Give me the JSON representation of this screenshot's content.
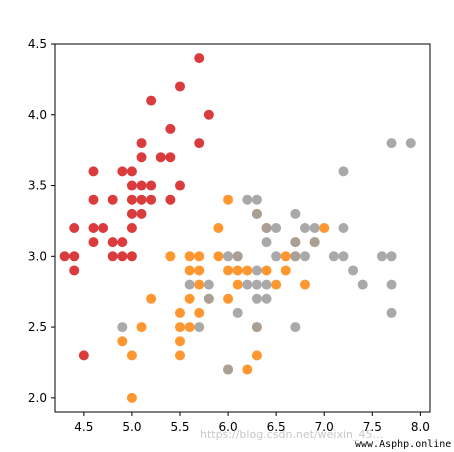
{
  "chart_data": {
    "type": "scatter",
    "title": "",
    "xlabel": "",
    "ylabel": "",
    "xlim": [
      4.2,
      8.1
    ],
    "ylim": [
      1.9,
      4.5
    ],
    "grid": false,
    "xticks": [
      4.5,
      5.0,
      5.5,
      6.0,
      6.5,
      7.0,
      7.5,
      8.0
    ],
    "yticks": [
      2.0,
      2.5,
      3.0,
      3.5,
      4.0,
      4.5
    ],
    "xtick_labels": [
      "4.5",
      "5.0",
      "5.5",
      "6.0",
      "6.5",
      "7.0",
      "7.5",
      "8.0"
    ],
    "ytick_labels": [
      "2.0",
      "2.5",
      "3.0",
      "3.5",
      "4.0",
      "4.5"
    ],
    "series": [
      {
        "color": "#d62728",
        "points": [
          [
            4.3,
            3.0
          ],
          [
            4.4,
            2.9
          ],
          [
            4.4,
            3.0
          ],
          [
            4.4,
            3.2
          ],
          [
            4.5,
            2.3
          ],
          [
            4.6,
            3.1
          ],
          [
            4.6,
            3.2
          ],
          [
            4.6,
            3.4
          ],
          [
            4.6,
            3.6
          ],
          [
            4.7,
            3.2
          ],
          [
            4.8,
            3.0
          ],
          [
            4.8,
            3.1
          ],
          [
            4.8,
            3.4
          ],
          [
            4.9,
            3.0
          ],
          [
            4.9,
            3.1
          ],
          [
            4.9,
            3.6
          ],
          [
            5.0,
            3.0
          ],
          [
            5.0,
            3.2
          ],
          [
            5.0,
            3.3
          ],
          [
            5.0,
            3.4
          ],
          [
            5.0,
            3.5
          ],
          [
            5.0,
            3.6
          ],
          [
            5.1,
            3.3
          ],
          [
            5.1,
            3.4
          ],
          [
            5.1,
            3.5
          ],
          [
            5.1,
            3.7
          ],
          [
            5.1,
            3.8
          ],
          [
            5.2,
            3.4
          ],
          [
            5.2,
            3.5
          ],
          [
            5.2,
            4.1
          ],
          [
            5.3,
            3.7
          ],
          [
            5.4,
            3.4
          ],
          [
            5.4,
            3.7
          ],
          [
            5.4,
            3.9
          ],
          [
            5.5,
            3.5
          ],
          [
            5.5,
            4.2
          ],
          [
            5.7,
            3.8
          ],
          [
            5.7,
            4.4
          ],
          [
            5.8,
            4.0
          ]
        ]
      },
      {
        "color": "#ff8c1a",
        "points": [
          [
            4.9,
            2.4
          ],
          [
            5.0,
            2.0
          ],
          [
            5.0,
            2.3
          ],
          [
            5.1,
            2.5
          ],
          [
            5.2,
            2.7
          ],
          [
            5.4,
            3.0
          ],
          [
            5.5,
            2.3
          ],
          [
            5.5,
            2.4
          ],
          [
            5.5,
            2.5
          ],
          [
            5.5,
            2.6
          ],
          [
            5.6,
            2.5
          ],
          [
            5.6,
            2.7
          ],
          [
            5.6,
            2.9
          ],
          [
            5.6,
            3.0
          ],
          [
            5.7,
            2.6
          ],
          [
            5.7,
            2.8
          ],
          [
            5.7,
            2.9
          ],
          [
            5.7,
            3.0
          ],
          [
            5.8,
            2.7
          ],
          [
            5.9,
            3.0
          ],
          [
            5.9,
            3.2
          ],
          [
            6.0,
            2.2
          ],
          [
            6.0,
            2.7
          ],
          [
            6.0,
            2.9
          ],
          [
            6.0,
            3.4
          ],
          [
            6.1,
            2.8
          ],
          [
            6.1,
            2.9
          ],
          [
            6.1,
            3.0
          ],
          [
            6.2,
            2.2
          ],
          [
            6.2,
            2.9
          ],
          [
            6.3,
            2.3
          ],
          [
            6.3,
            2.5
          ],
          [
            6.3,
            3.3
          ],
          [
            6.4,
            2.9
          ],
          [
            6.4,
            3.2
          ],
          [
            6.5,
            2.8
          ],
          [
            6.6,
            2.9
          ],
          [
            6.6,
            3.0
          ],
          [
            6.7,
            3.0
          ],
          [
            6.7,
            3.1
          ],
          [
            6.8,
            2.8
          ],
          [
            6.9,
            3.1
          ],
          [
            7.0,
            3.2
          ]
        ]
      },
      {
        "color": "#a0a0a0",
        "points": [
          [
            4.9,
            2.5
          ],
          [
            5.6,
            2.8
          ],
          [
            5.7,
            2.5
          ],
          [
            5.8,
            2.7
          ],
          [
            5.8,
            2.8
          ],
          [
            6.0,
            2.2
          ],
          [
            6.0,
            3.0
          ],
          [
            6.1,
            2.6
          ],
          [
            6.1,
            3.0
          ],
          [
            6.2,
            2.8
          ],
          [
            6.2,
            3.4
          ],
          [
            6.3,
            2.5
          ],
          [
            6.3,
            2.7
          ],
          [
            6.3,
            2.8
          ],
          [
            6.3,
            2.9
          ],
          [
            6.3,
            3.3
          ],
          [
            6.3,
            3.4
          ],
          [
            6.4,
            2.7
          ],
          [
            6.4,
            2.8
          ],
          [
            6.4,
            3.1
          ],
          [
            6.4,
            3.2
          ],
          [
            6.5,
            3.0
          ],
          [
            6.5,
            3.2
          ],
          [
            6.7,
            2.5
          ],
          [
            6.7,
            3.0
          ],
          [
            6.7,
            3.1
          ],
          [
            6.7,
            3.3
          ],
          [
            6.8,
            3.0
          ],
          [
            6.8,
            3.2
          ],
          [
            6.9,
            3.1
          ],
          [
            6.9,
            3.2
          ],
          [
            7.1,
            3.0
          ],
          [
            7.2,
            3.0
          ],
          [
            7.2,
            3.2
          ],
          [
            7.2,
            3.6
          ],
          [
            7.3,
            2.9
          ],
          [
            7.4,
            2.8
          ],
          [
            7.6,
            3.0
          ],
          [
            7.7,
            2.6
          ],
          [
            7.7,
            2.8
          ],
          [
            7.7,
            3.0
          ],
          [
            7.7,
            3.8
          ],
          [
            7.9,
            3.8
          ]
        ]
      }
    ]
  },
  "watermark": {
    "text": "https://blog.csdn.net/weixin_45...",
    "site": "www.Asphp.online"
  }
}
